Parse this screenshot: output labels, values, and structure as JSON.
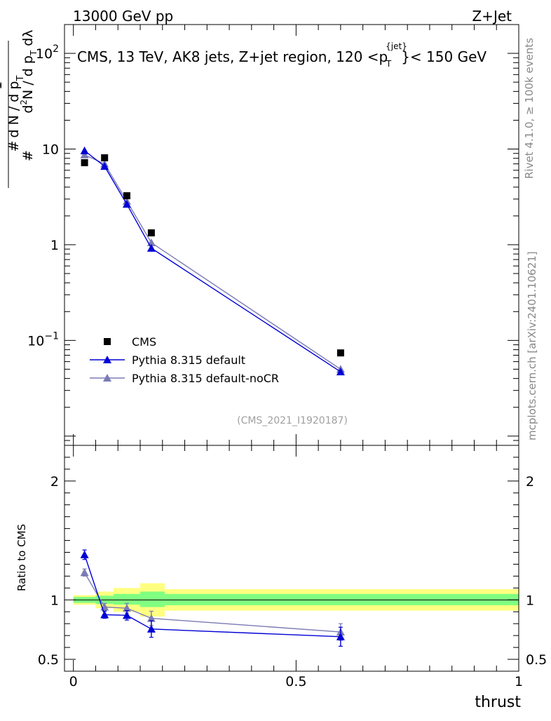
{
  "header": {
    "left": "13000 GeV pp",
    "right": "Z+Jet"
  },
  "side_text": {
    "rivet": "Rivet 4.1.0, ≥ 100k events",
    "mcplots": "mcplots.cern.ch [arXiv:2401.10621]"
  },
  "colors": {
    "data": "#000000",
    "default": "#0000d6",
    "nocr": "#7b7bb5",
    "band_inner": "#80ff80",
    "band_outer": "#ffff80"
  },
  "chart_data": [
    {
      "type": "scatter",
      "panel": "main",
      "title": "CMS, 13 TeV, AK8 jets, Z+jet region, 120 <p_T^{jet}< 150 GeV",
      "ylabel": "1/N dN/dp_T  d²N/dp_T dλ",
      "xlabel": "",
      "yscale": "log",
      "xlim": [
        -0.02,
        1.0
      ],
      "ylim": [
        0.008,
        200
      ],
      "watermark": "(CMS_2021_I1920187)",
      "y_tick_labels": [
        {
          "value": 100,
          "base": "10",
          "exp": "2"
        },
        {
          "value": 10,
          "base": "10",
          "exp": ""
        },
        {
          "value": 1,
          "base": "1",
          "exp": ""
        },
        {
          "value": 0.1,
          "base": "10",
          "exp": "−1"
        }
      ],
      "legend": [
        "CMS",
        "Pythia 8.315 default",
        "Pythia 8.315 default-noCR"
      ],
      "series": [
        {
          "name": "CMS",
          "x": [
            0.025,
            0.07,
            0.12,
            0.175,
            0.6
          ],
          "y": [
            7.2,
            8.1,
            3.25,
            1.33,
            0.074
          ]
        },
        {
          "name": "Pythia 8.315 default",
          "x": [
            0.025,
            0.07,
            0.12,
            0.175,
            0.6
          ],
          "y": [
            9.6,
            6.6,
            2.65,
            0.92,
            0.047
          ]
        },
        {
          "name": "Pythia 8.315 default-noCR",
          "x": [
            0.025,
            0.07,
            0.12,
            0.175,
            0.6
          ],
          "y": [
            8.7,
            7.0,
            2.85,
            1.05,
            0.05
          ]
        }
      ]
    },
    {
      "type": "scatter",
      "panel": "ratio",
      "ylabel": "Ratio to CMS",
      "xlabel": "thrust",
      "xlim": [
        -0.02,
        1.0
      ],
      "ylim": [
        0.4,
        2.3
      ],
      "x_tick_labels": [
        {
          "value": 0,
          "label": "0"
        },
        {
          "value": 0.5,
          "label": "0.5"
        },
        {
          "value": 1,
          "label": "1"
        }
      ],
      "y_tick_labels": [
        {
          "value": 2,
          "label": "2"
        },
        {
          "value": 1,
          "label": "1"
        },
        {
          "value": 0.5,
          "label": "0.5"
        }
      ],
      "bands": [
        {
          "x0": 0.0,
          "x1": 0.05,
          "inner": [
            0.975,
            1.025
          ],
          "outer": [
            0.96,
            1.04
          ]
        },
        {
          "x0": 0.05,
          "x1": 0.09,
          "inner": [
            0.965,
            1.035
          ],
          "outer": [
            0.93,
            1.07
          ]
        },
        {
          "x0": 0.09,
          "x1": 0.15,
          "inner": [
            0.96,
            1.05
          ],
          "outer": [
            0.9,
            1.1
          ]
        },
        {
          "x0": 0.15,
          "x1": 0.205,
          "inner": [
            0.94,
            1.07
          ],
          "outer": [
            0.86,
            1.14
          ]
        },
        {
          "x0": 0.205,
          "x1": 1.0,
          "inner": [
            0.955,
            1.05
          ],
          "outer": [
            0.91,
            1.09
          ]
        }
      ],
      "series": [
        {
          "name": "Pythia 8.315 default",
          "x": [
            0.025,
            0.07,
            0.12,
            0.175,
            0.6
          ],
          "y": [
            1.38,
            0.875,
            0.87,
            0.755,
            0.69
          ],
          "err": [
            0.04,
            0.03,
            0.04,
            0.07,
            0.08
          ]
        },
        {
          "name": "Pythia 8.315 default-noCR",
          "x": [
            0.025,
            0.07,
            0.12,
            0.175,
            0.6
          ],
          "y": [
            1.23,
            0.94,
            0.93,
            0.845,
            0.73
          ],
          "err": [
            0.03,
            0.03,
            0.04,
            0.06,
            0.07
          ]
        }
      ]
    }
  ]
}
